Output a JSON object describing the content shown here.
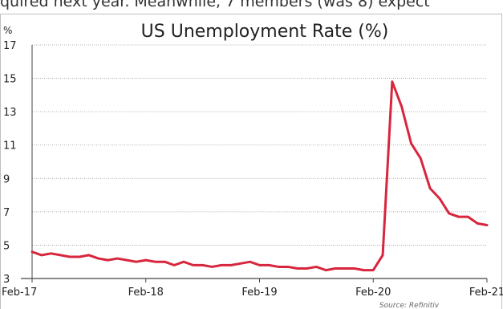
{
  "caption_top": "quired next year. Meanwhile, 7 members (was 8) expect",
  "chart_data": {
    "type": "line",
    "title": "US Unemployment Rate (%)",
    "ylabel": "%",
    "ylim": [
      3,
      17
    ],
    "yticks": [
      3,
      5,
      7,
      9,
      11,
      13,
      15,
      17
    ],
    "xlim": [
      0,
      48
    ],
    "xticks": [
      {
        "label": "Feb-17",
        "x": 0
      },
      {
        "label": "Feb-18",
        "x": 12
      },
      {
        "label": "Feb-19",
        "x": 24
      },
      {
        "label": "Feb-20",
        "x": 36
      },
      {
        "label": "Feb-21",
        "x": 48
      }
    ],
    "grid": true,
    "line_color": "#d7263d",
    "source": "Source: Refinitiv",
    "series": [
      {
        "values": [
          4.6,
          4.4,
          4.5,
          4.4,
          4.3,
          4.3,
          4.4,
          4.2,
          4.1,
          4.2,
          4.1,
          4.0,
          4.1,
          4.0,
          4.0,
          3.8,
          4.0,
          3.8,
          3.8,
          3.7,
          3.8,
          3.8,
          3.9,
          4.0,
          3.8,
          3.8,
          3.7,
          3.7,
          3.6,
          3.6,
          3.7,
          3.5,
          3.6,
          3.6,
          3.6,
          3.5,
          3.5,
          4.4,
          14.8,
          13.3,
          11.1,
          10.2,
          8.4,
          7.8,
          6.9,
          6.7,
          6.7,
          6.3,
          6.2
        ]
      }
    ]
  }
}
